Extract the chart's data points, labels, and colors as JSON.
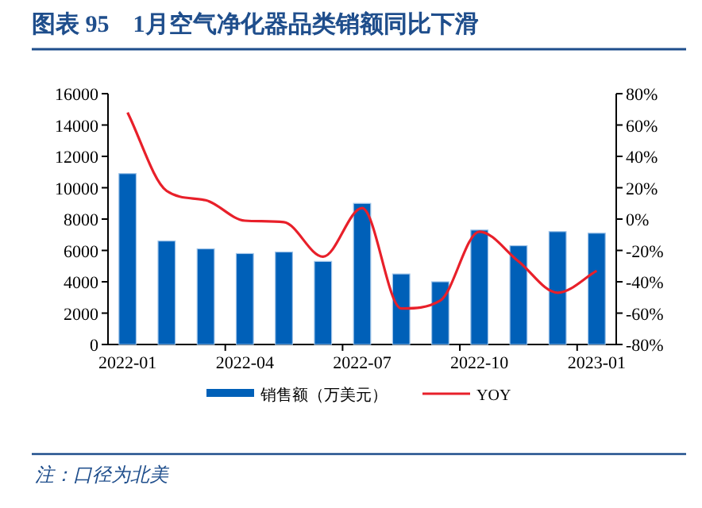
{
  "chart_data": {
    "type": "bar",
    "title": "图表 95　1月空气净化器品类销额同比下滑",
    "categories": [
      "2022-01",
      null,
      null,
      "2022-04",
      null,
      null,
      "2022-07",
      null,
      null,
      "2022-10",
      null,
      null,
      "2023-01"
    ],
    "series": [
      {
        "name": "销售额（万美元）",
        "color": "#0060b8",
        "values": [
          10900,
          6600,
          6100,
          5800,
          5900,
          5300,
          9000,
          4500,
          4000,
          7300,
          6300,
          7200,
          7100
        ]
      },
      {
        "name": "YOY",
        "type": "line",
        "axis": "y2",
        "color": "#e8202a",
        "values": [
          68,
          18,
          12,
          -1,
          -2,
          -24,
          7,
          -57,
          -52,
          -8,
          -27,
          -47,
          -33
        ]
      }
    ],
    "ylim": [
      0,
      16000
    ],
    "yticks": [
      0,
      2000,
      4000,
      6000,
      8000,
      10000,
      12000,
      14000,
      16000
    ],
    "y2lim": [
      -80,
      80
    ],
    "y2ticks": [
      {
        "value": -80,
        "label": "-80%"
      },
      {
        "value": -60,
        "label": "-60%"
      },
      {
        "value": -40,
        "label": "-40%"
      },
      {
        "value": -20,
        "label": "-20%"
      },
      {
        "value": 0,
        "label": "0%"
      },
      {
        "value": 20,
        "label": "20%"
      },
      {
        "value": 40,
        "label": "40%"
      },
      {
        "value": 60,
        "label": "60%"
      },
      {
        "value": 80,
        "label": "80%"
      }
    ],
    "legend": "bottom",
    "grid": false,
    "annotations": [
      "注：口径为北美"
    ]
  }
}
